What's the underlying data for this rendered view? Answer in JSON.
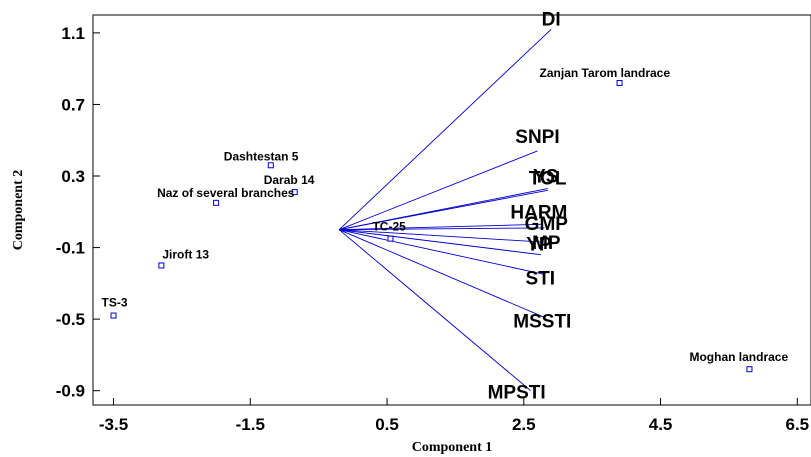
{
  "chart_data": {
    "type": "scatter",
    "subtype": "biplot",
    "xlabel": "Component 1",
    "ylabel": "Component 2",
    "xlim": [
      -3.8,
      6.7
    ],
    "ylim": [
      -0.98,
      1.2
    ],
    "x_ticks": [
      "-3.5",
      "-1.5",
      "0.5",
      "2.5",
      "4.5",
      "6.5"
    ],
    "y_ticks": [
      "1.1",
      "0.7",
      "0.3",
      "-0.1",
      "-0.5",
      "-0.9"
    ],
    "grid": false,
    "colors": {
      "vectors": "#0000cc",
      "points": "#0000cc",
      "text": "#000000",
      "axes": "#000000"
    },
    "origin": [
      -0.2,
      0.0
    ],
    "observations": [
      {
        "label": "Zanjan Tarom landrace",
        "x": 3.9,
        "y": 0.82
      },
      {
        "label": "Dashtestan 5",
        "x": -1.2,
        "y": 0.36
      },
      {
        "label": "Darab 14",
        "x": -0.85,
        "y": 0.21
      },
      {
        "label": "Naz of several branches",
        "x": -2.0,
        "y": 0.15
      },
      {
        "label": "TC-25",
        "x": 0.55,
        "y": -0.05
      },
      {
        "label": "Jiroft 13",
        "x": -2.8,
        "y": -0.2
      },
      {
        "label": "TS-3",
        "x": -3.5,
        "y": -0.48
      },
      {
        "label": "Moghan landrace",
        "x": 5.8,
        "y": -0.78
      }
    ],
    "vectors": [
      {
        "label": "DI",
        "x": 2.9,
        "y": 1.12
      },
      {
        "label": "SNPI",
        "x": 2.7,
        "y": 0.44
      },
      {
        "label": "YS",
        "x": 2.85,
        "y": 0.23
      },
      {
        "label": "TOL",
        "x": 2.85,
        "y": 0.22
      },
      {
        "label": "HARM",
        "x": 2.75,
        "y": 0.03
      },
      {
        "label": "GMP",
        "x": 2.8,
        "y": 0.01
      },
      {
        "label": "MP",
        "x": 2.8,
        "y": -0.07
      },
      {
        "label": "YP",
        "x": 2.75,
        "y": -0.14
      },
      {
        "label": "STI",
        "x": 2.8,
        "y": -0.25
      },
      {
        "label": "MSSTI",
        "x": 2.8,
        "y": -0.49
      },
      {
        "label": "MPSTI",
        "x": 2.6,
        "y": -0.9
      }
    ]
  }
}
